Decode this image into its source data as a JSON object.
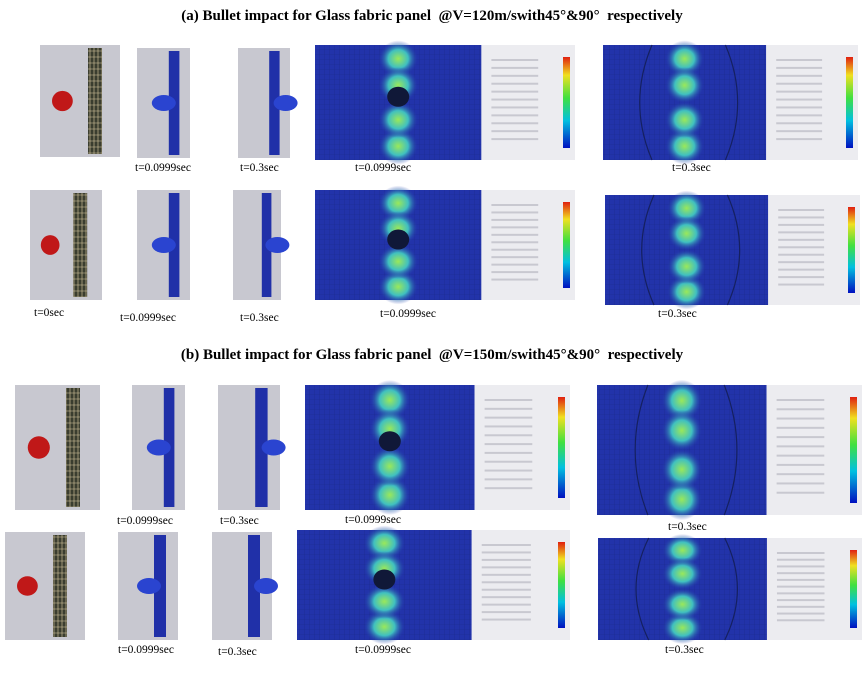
{
  "panels": [
    {
      "title": "(a) Bullet impact for Glass fabric panel  @V=120m/swith45°&90°  respectively",
      "rows": [
        {
          "labels": [
            "t=0.0999sec",
            "t=0.3sec",
            "t=0.0999sec",
            "t=0.3sec"
          ]
        },
        {
          "labels": [
            "t=0sec",
            "t=0.0999sec",
            "t=0.3sec",
            "t=0.0999sec",
            "t=0.3sec"
          ]
        }
      ]
    },
    {
      "title": "(b) Bullet impact for Glass fabric panel  @V=150m/swith45°&90°  respectively",
      "rows": [
        {
          "labels": [
            "t=0.0999sec",
            "t=0.3sec",
            "t=0.0999sec",
            "t=0.3sec"
          ]
        },
        {
          "labels": [
            "t=0.0999sec",
            "t=0.3sec",
            "t=0.0999sec",
            "t=0.3sec"
          ]
        }
      ]
    }
  ]
}
